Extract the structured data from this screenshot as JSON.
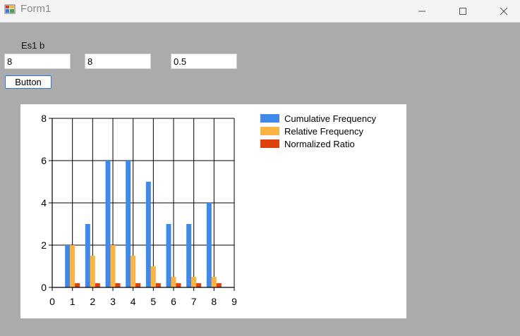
{
  "window": {
    "title": "Form1",
    "minimize_icon": "minimize-icon",
    "maximize_icon": "maximize-icon",
    "close_icon": "close-icon"
  },
  "form": {
    "label": "Es1 b",
    "input1_value": "8",
    "input2_value": "8",
    "input3_value": "0.5",
    "button_label": "Button"
  },
  "chart_data": {
    "type": "bar",
    "xlim": [
      0,
      9
    ],
    "ylim": [
      0,
      8
    ],
    "x_ticks": [
      0,
      1,
      2,
      3,
      4,
      5,
      6,
      7,
      8,
      9
    ],
    "y_ticks": [
      0,
      2,
      4,
      6,
      8
    ],
    "grid": true,
    "legend_position": "top-right",
    "categories": [
      1,
      2,
      3,
      4,
      5,
      6,
      7,
      8
    ],
    "series": [
      {
        "name": "Cumulative Frequency",
        "color": "#4189e8",
        "values": [
          2,
          3,
          6,
          6,
          5,
          3,
          3,
          4
        ]
      },
      {
        "name": "Relative Frequency",
        "color": "#fbb443",
        "values": [
          2,
          1.5,
          2,
          1.5,
          1,
          0.5,
          0.5,
          0.5
        ]
      },
      {
        "name": "Normalized Ratio",
        "color": "#e0400a",
        "values": [
          0.2,
          0.2,
          0.2,
          0.2,
          0.2,
          0.2,
          0.2,
          0.2
        ]
      }
    ]
  }
}
